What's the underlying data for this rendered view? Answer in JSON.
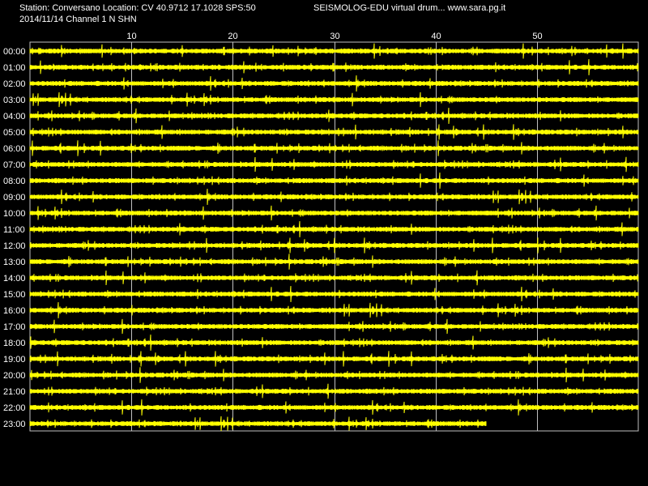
{
  "header": {
    "station_line": "Station: Conversano Location: CV 40.9712 17.1028 SPS:50",
    "app_title": "SEISMOLOG-EDU virtual drum... www.sara.pg.it",
    "date_line": "2014/11/14  Channel 1 N SHN"
  },
  "colors": {
    "background": "#000000",
    "trace": "#ffff00",
    "grid": "#c0c0c0",
    "text": "#ffffff"
  },
  "chart_data": {
    "type": "line",
    "title": "",
    "xlabel": "",
    "ylabel": "",
    "xlim": [
      0,
      60
    ],
    "x_ticks": [
      10,
      20,
      30,
      40,
      50
    ],
    "x_tick_labels": [
      "10",
      "20",
      "30",
      "40",
      "50"
    ],
    "grid": true,
    "rows": [
      {
        "label": "00:00",
        "end_minute": 60
      },
      {
        "label": "01:00",
        "end_minute": 60
      },
      {
        "label": "02:00",
        "end_minute": 60
      },
      {
        "label": "03:00",
        "end_minute": 60
      },
      {
        "label": "04:00",
        "end_minute": 60
      },
      {
        "label": "05:00",
        "end_minute": 60
      },
      {
        "label": "06:00",
        "end_minute": 60
      },
      {
        "label": "07:00",
        "end_minute": 60
      },
      {
        "label": "08:00",
        "end_minute": 60
      },
      {
        "label": "09:00",
        "end_minute": 60
      },
      {
        "label": "10:00",
        "end_minute": 60
      },
      {
        "label": "11:00",
        "end_minute": 60
      },
      {
        "label": "12:00",
        "end_minute": 60
      },
      {
        "label": "13:00",
        "end_minute": 60
      },
      {
        "label": "14:00",
        "end_minute": 60
      },
      {
        "label": "15:00",
        "end_minute": 60
      },
      {
        "label": "16:00",
        "end_minute": 60
      },
      {
        "label": "17:00",
        "end_minute": 60
      },
      {
        "label": "18:00",
        "end_minute": 60
      },
      {
        "label": "19:00",
        "end_minute": 60
      },
      {
        "label": "20:00",
        "end_minute": 60
      },
      {
        "label": "21:00",
        "end_minute": 60
      },
      {
        "label": "22:00",
        "end_minute": 60
      },
      {
        "label": "23:00",
        "end_minute": 45
      }
    ]
  }
}
